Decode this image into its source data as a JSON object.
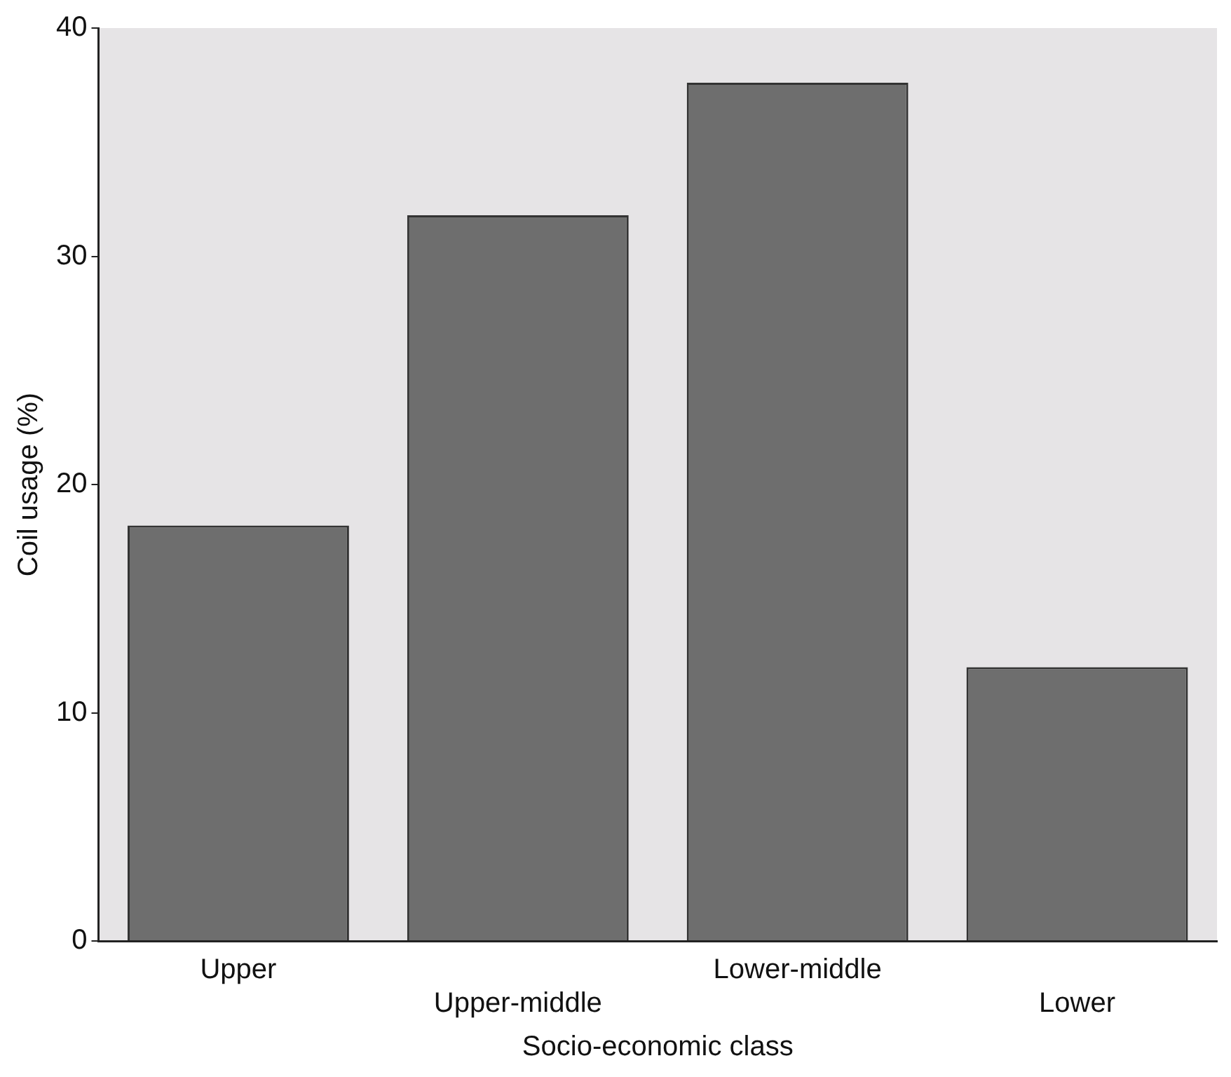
{
  "chart_data": {
    "type": "bar",
    "xlabel": "Socio-economic class",
    "ylabel": "Coil usage (%)",
    "categories": [
      "Upper",
      "Upper-middle",
      "Lower-middle",
      "Lower"
    ],
    "values": [
      18.2,
      31.8,
      37.6,
      12.0
    ],
    "color": "#6e6e6e",
    "ylim": [
      0,
      40
    ],
    "yticks": [
      0,
      10,
      20,
      30,
      40
    ],
    "grid": false,
    "legend": false
  }
}
